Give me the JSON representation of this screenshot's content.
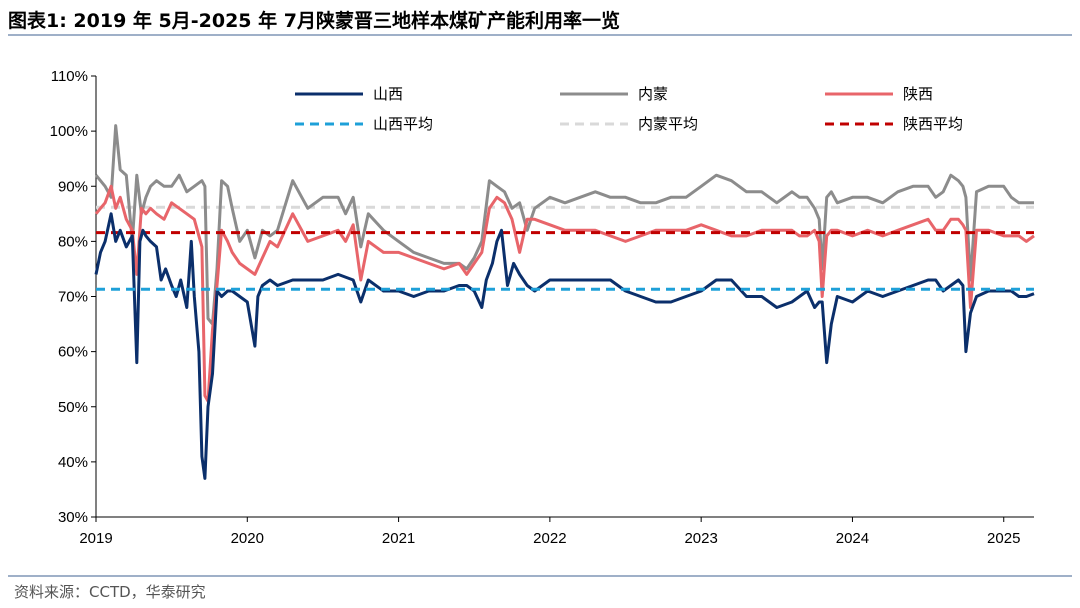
{
  "title": "图表1:  2019 年 5月-2025 年 7月陕蒙晋三地样本煤矿产能利用率一览",
  "source": "资料来源：CCTD，华泰研究",
  "colors": {
    "shanxi": "#0b2f6b",
    "neimeng": "#8c8c8c",
    "shaanxi": "#e8656a",
    "shanxi_avg": "#1ea0d8",
    "neimeng_avg": "#d9d9d9",
    "shaanxi_avg": "#c00000"
  },
  "chart_data": {
    "type": "line",
    "ylim": [
      30,
      110
    ],
    "xlim": [
      2019.0,
      2025.2
    ],
    "y_ticks": [
      "30%",
      "40%",
      "50%",
      "60%",
      "70%",
      "80%",
      "90%",
      "100%",
      "110%"
    ],
    "x_ticks": [
      "2019",
      "2020",
      "2021",
      "2022",
      "2023",
      "2024",
      "2025"
    ],
    "legend_position": "top",
    "series": [
      {
        "name": "山西",
        "style": "solid",
        "color": "#0b2f6b",
        "x": [
          2019.0,
          2019.03,
          2019.06,
          2019.1,
          2019.13,
          2019.16,
          2019.2,
          2019.24,
          2019.27,
          2019.29,
          2019.31,
          2019.33,
          2019.36,
          2019.4,
          2019.43,
          2019.46,
          2019.5,
          2019.53,
          2019.56,
          2019.6,
          2019.63,
          2019.65,
          2019.68,
          2019.7,
          2019.72,
          2019.74,
          2019.77,
          2019.8,
          2019.83,
          2019.87,
          2019.9,
          2019.95,
          2020.0,
          2020.05,
          2020.07,
          2020.1,
          2020.15,
          2020.2,
          2020.3,
          2020.4,
          2020.5,
          2020.6,
          2020.7,
          2020.75,
          2020.8,
          2020.9,
          2021.0,
          2021.1,
          2021.2,
          2021.3,
          2021.4,
          2021.45,
          2021.5,
          2021.55,
          2021.58,
          2021.62,
          2021.65,
          2021.68,
          2021.72,
          2021.76,
          2021.8,
          2021.85,
          2021.9,
          2022.0,
          2022.1,
          2022.2,
          2022.3,
          2022.4,
          2022.5,
          2022.6,
          2022.7,
          2022.8,
          2022.9,
          2023.0,
          2023.1,
          2023.2,
          2023.3,
          2023.4,
          2023.5,
          2023.6,
          2023.65,
          2023.7,
          2023.75,
          2023.78,
          2023.8,
          2023.83,
          2023.86,
          2023.9,
          2024.0,
          2024.1,
          2024.2,
          2024.3,
          2024.4,
          2024.5,
          2024.55,
          2024.6,
          2024.65,
          2024.7,
          2024.73,
          2024.75,
          2024.78,
          2024.82,
          2024.9,
          2025.0,
          2025.05,
          2025.1,
          2025.15,
          2025.2
        ],
        "y": [
          74,
          78,
          80,
          85,
          80,
          82,
          79,
          81,
          58,
          80,
          82,
          81,
          80,
          79,
          73,
          75,
          72,
          70,
          73,
          68,
          80,
          70,
          60,
          41,
          37,
          50,
          56,
          71,
          70,
          71,
          71,
          70,
          69,
          61,
          70,
          72,
          73,
          72,
          73,
          73,
          73,
          74,
          73,
          69,
          73,
          71,
          71,
          70,
          71,
          71,
          72,
          72,
          71,
          68,
          73,
          76,
          80,
          82,
          72,
          76,
          74,
          72,
          71,
          73,
          73,
          73,
          73,
          73,
          71,
          70,
          69,
          69,
          70,
          71,
          73,
          73,
          70,
          70,
          68,
          69,
          70,
          71,
          68,
          69,
          69,
          58,
          65,
          70,
          69,
          71,
          70,
          71,
          72,
          73,
          73,
          71,
          72,
          73,
          72,
          60,
          67,
          70,
          71,
          71,
          71,
          70,
          70,
          70.5
        ]
      },
      {
        "name": "内蒙",
        "style": "solid",
        "color": "#8c8c8c",
        "x": [
          2019.0,
          2019.03,
          2019.06,
          2019.1,
          2019.13,
          2019.16,
          2019.2,
          2019.24,
          2019.27,
          2019.3,
          2019.33,
          2019.36,
          2019.4,
          2019.45,
          2019.5,
          2019.55,
          2019.6,
          2019.65,
          2019.7,
          2019.72,
          2019.74,
          2019.77,
          2019.8,
          2019.83,
          2019.87,
          2019.9,
          2019.95,
          2020.0,
          2020.05,
          2020.1,
          2020.15,
          2020.2,
          2020.3,
          2020.4,
          2020.5,
          2020.6,
          2020.65,
          2020.7,
          2020.75,
          2020.8,
          2020.9,
          2021.0,
          2021.1,
          2021.2,
          2021.3,
          2021.4,
          2021.45,
          2021.5,
          2021.55,
          2021.6,
          2021.65,
          2021.7,
          2021.75,
          2021.8,
          2021.85,
          2021.9,
          2022.0,
          2022.1,
          2022.2,
          2022.3,
          2022.4,
          2022.5,
          2022.6,
          2022.7,
          2022.8,
          2022.9,
          2023.0,
          2023.1,
          2023.2,
          2023.3,
          2023.4,
          2023.5,
          2023.6,
          2023.65,
          2023.7,
          2023.75,
          2023.78,
          2023.8,
          2023.83,
          2023.86,
          2023.9,
          2024.0,
          2024.1,
          2024.2,
          2024.3,
          2024.4,
          2024.5,
          2024.55,
          2024.6,
          2024.65,
          2024.7,
          2024.73,
          2024.75,
          2024.78,
          2024.82,
          2024.9,
          2025.0,
          2025.05,
          2025.1,
          2025.15,
          2025.2
        ],
        "y": [
          92,
          91,
          90,
          88,
          101,
          93,
          92,
          80,
          92,
          85,
          88,
          90,
          91,
          90,
          90,
          92,
          89,
          90,
          91,
          90,
          66,
          65,
          75,
          91,
          90,
          86,
          80,
          82,
          77,
          82,
          81,
          82,
          91,
          86,
          88,
          88,
          85,
          88,
          79,
          85,
          82,
          80,
          78,
          77,
          76,
          76,
          75,
          77,
          80,
          91,
          90,
          89,
          86,
          87,
          82,
          86,
          88,
          87,
          88,
          89,
          88,
          88,
          87,
          87,
          88,
          88,
          90,
          92,
          91,
          89,
          89,
          87,
          89,
          88,
          88,
          86,
          84,
          75,
          88,
          89,
          87,
          88,
          88,
          87,
          89,
          90,
          90,
          88,
          89,
          92,
          91,
          90,
          88,
          73,
          89,
          90,
          90,
          88,
          87,
          87,
          87
        ]
      },
      {
        "name": "陕西",
        "style": "solid",
        "color": "#e8656a",
        "x": [
          2019.0,
          2019.03,
          2019.06,
          2019.1,
          2019.13,
          2019.16,
          2019.2,
          2019.24,
          2019.27,
          2019.3,
          2019.33,
          2019.36,
          2019.4,
          2019.45,
          2019.5,
          2019.55,
          2019.6,
          2019.65,
          2019.7,
          2019.72,
          2019.74,
          2019.77,
          2019.8,
          2019.83,
          2019.87,
          2019.9,
          2019.95,
          2020.0,
          2020.05,
          2020.1,
          2020.15,
          2020.2,
          2020.3,
          2020.4,
          2020.5,
          2020.6,
          2020.65,
          2020.7,
          2020.75,
          2020.8,
          2020.9,
          2021.0,
          2021.1,
          2021.2,
          2021.3,
          2021.4,
          2021.45,
          2021.5,
          2021.55,
          2021.6,
          2021.65,
          2021.7,
          2021.75,
          2021.8,
          2021.85,
          2021.9,
          2022.0,
          2022.1,
          2022.2,
          2022.3,
          2022.4,
          2022.5,
          2022.6,
          2022.7,
          2022.8,
          2022.9,
          2023.0,
          2023.1,
          2023.2,
          2023.3,
          2023.4,
          2023.5,
          2023.6,
          2023.65,
          2023.7,
          2023.75,
          2023.78,
          2023.8,
          2023.83,
          2023.86,
          2023.9,
          2024.0,
          2024.1,
          2024.2,
          2024.3,
          2024.4,
          2024.5,
          2024.55,
          2024.6,
          2024.65,
          2024.7,
          2024.73,
          2024.75,
          2024.78,
          2024.82,
          2024.9,
          2025.0,
          2025.05,
          2025.1,
          2025.15,
          2025.2
        ],
        "y": [
          85,
          86,
          87,
          90,
          86,
          88,
          84,
          82,
          74,
          86,
          85,
          86,
          85,
          84,
          87,
          86,
          85,
          84,
          79,
          52,
          51,
          64,
          72,
          82,
          80,
          78,
          76,
          75,
          74,
          77,
          80,
          79,
          85,
          80,
          81,
          82,
          80,
          83,
          73,
          80,
          78,
          78,
          77,
          76,
          75,
          76,
          74,
          76,
          78,
          86,
          88,
          87,
          84,
          78,
          84,
          84,
          83,
          82,
          82,
          82,
          81,
          80,
          81,
          82,
          82,
          82,
          83,
          82,
          81,
          81,
          82,
          82,
          82,
          81,
          81,
          82,
          80,
          70,
          81,
          82,
          82,
          81,
          82,
          81,
          82,
          83,
          84,
          82,
          82,
          84,
          84,
          83,
          82,
          68,
          82,
          82,
          81,
          81,
          81,
          80,
          81
        ]
      },
      {
        "name": "山西平均",
        "style": "dashed",
        "color": "#1ea0d8",
        "x": [
          2019.0,
          2025.2
        ],
        "y": [
          71.3,
          71.3
        ]
      },
      {
        "name": "内蒙平均",
        "style": "dashed",
        "color": "#d9d9d9",
        "x": [
          2019.0,
          2025.2
        ],
        "y": [
          86.2,
          86.2
        ]
      },
      {
        "name": "陕西平均",
        "style": "dashed",
        "color": "#c00000",
        "x": [
          2019.0,
          2025.2
        ],
        "y": [
          81.6,
          81.6
        ]
      }
    ]
  }
}
